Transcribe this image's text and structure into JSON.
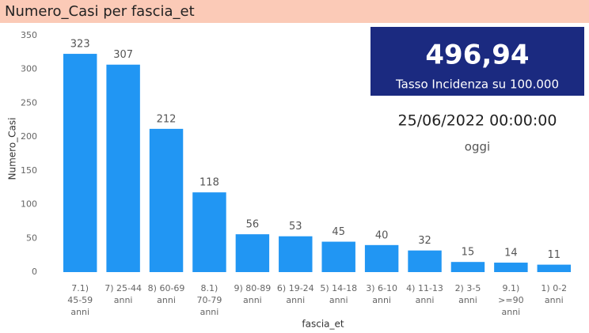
{
  "chart_data": {
    "type": "bar",
    "title": "Numero_Casi per fascia_et",
    "x_label": "fascia_et",
    "y_label": "Numero_Casi",
    "categories": [
      [
        "7.1)",
        "45-59",
        "anni"
      ],
      [
        "7) 25-44",
        "anni"
      ],
      [
        "8) 60-69",
        "anni"
      ],
      [
        "8.1)",
        "70-79",
        "anni"
      ],
      [
        "9) 80-89",
        "anni"
      ],
      [
        "6) 19-24",
        "anni"
      ],
      [
        "5) 14-18",
        "anni"
      ],
      [
        "3) 6-10",
        "anni"
      ],
      [
        "4) 11-13",
        "anni"
      ],
      [
        "2) 3-5",
        "anni"
      ],
      [
        "9.1)",
        ">=90",
        "anni"
      ],
      [
        "1) 0-2",
        "anni"
      ]
    ],
    "values": [
      323,
      307,
      212,
      118,
      56,
      53,
      45,
      40,
      32,
      15,
      14,
      11
    ],
    "color": "#2196f3",
    "ylim": [
      0,
      350
    ],
    "yticks": [
      0,
      50,
      100,
      150,
      200,
      250,
      300,
      350
    ],
    "grid": false
  },
  "cards": {
    "value": "496,94",
    "caption": "Tasso Incidenza su 100.000",
    "date": "25/06/2022 00:00:00",
    "date_caption": "oggi"
  }
}
